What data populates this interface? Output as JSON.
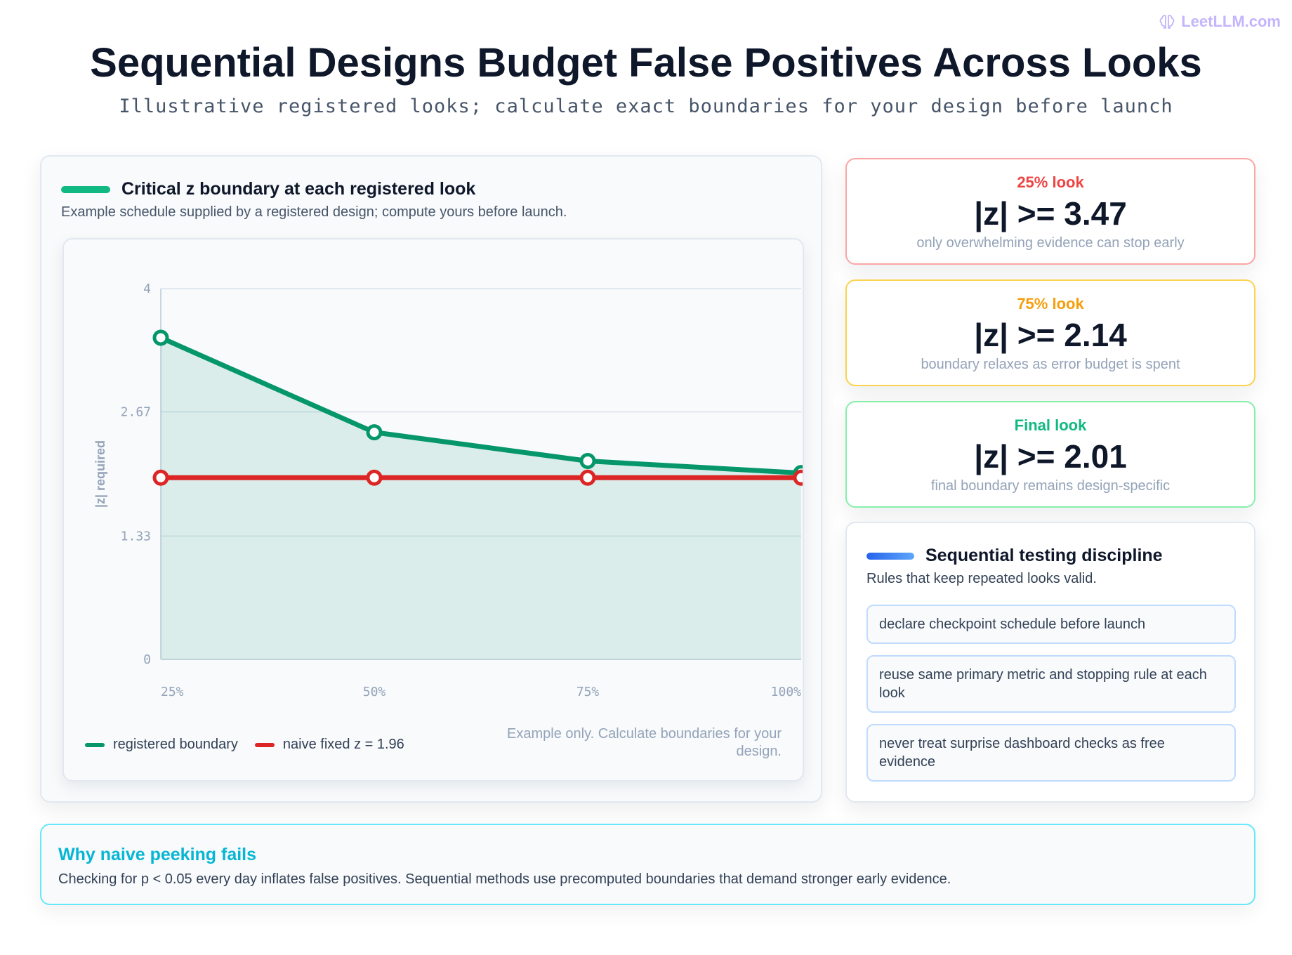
{
  "brand": {
    "text": "LeetLLM.com",
    "icon": "brain-icon"
  },
  "header": {
    "title": "Sequential Designs Budget False Positives Across Looks",
    "subtitle": "Illustrative registered looks; calculate exact boundaries for your design before launch"
  },
  "chart_panel": {
    "title": "Critical z boundary at each registered look",
    "subtitle": "Example schedule supplied by a registered design; compute yours before launch.",
    "accent": "#059669",
    "note": "Example only. Calculate boundaries for your design."
  },
  "chart_data": {
    "type": "line",
    "x": [
      "25%",
      "50%",
      "75%",
      "100%"
    ],
    "series": [
      {
        "name": "registered boundary",
        "values": [
          3.47,
          2.45,
          2.14,
          2.01
        ],
        "color": "#059669"
      },
      {
        "name": "naive fixed z = 1.96",
        "values": [
          1.96,
          1.96,
          1.96,
          1.96
        ],
        "color": "#dc2626"
      }
    ],
    "ylabel": "|z| required",
    "yticks": [
      "0",
      "1.33",
      "2.67",
      "4"
    ],
    "ylim": [
      0,
      4
    ],
    "grid": true,
    "area_fill": "#059669",
    "legend": "bottom-left"
  },
  "stats": [
    {
      "label": "25% look",
      "value": "|z| >= 3.47",
      "desc": "only overwhelming evidence can stop early",
      "color": "#ef4444",
      "border": "#fca5a5"
    },
    {
      "label": "75% look",
      "value": "|z| >= 2.14",
      "desc": "boundary relaxes as error budget is spent",
      "color": "#f59e0b",
      "border": "#fcd34d"
    },
    {
      "label": "Final look",
      "value": "|z| >= 2.01",
      "desc": "final boundary remains design-specific",
      "color": "#10b981",
      "border": "#86efac"
    }
  ],
  "discipline": {
    "title": "Sequential testing discipline",
    "subtitle": "Rules that keep repeated looks valid.",
    "accent": "#3b82f6",
    "rules": [
      "declare checkpoint schedule before launch",
      "reuse same primary metric and stopping rule at each look",
      "never treat surprise dashboard checks as free evidence"
    ]
  },
  "why": {
    "title": "Why naive peeking fails",
    "text": "Checking for p < 0.05 every day inflates false positives. Sequential methods use precomputed boundaries that demand stronger early evidence."
  }
}
